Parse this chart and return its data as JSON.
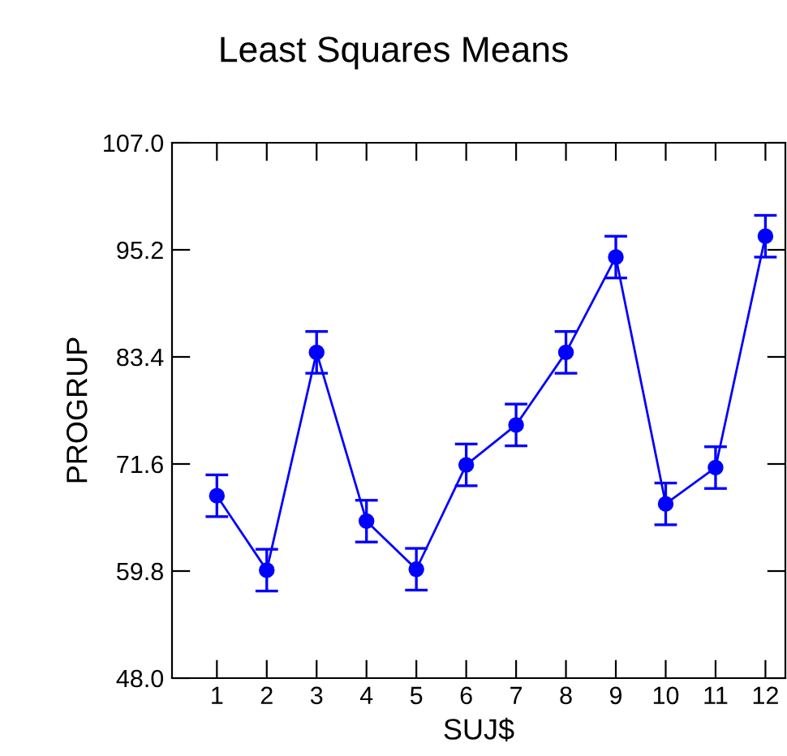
{
  "chart_data": {
    "type": "line",
    "title": "Least Squares Means",
    "xlabel": "SUJ$",
    "ylabel": "PROGRUP",
    "categories": [
      "1",
      "2",
      "3",
      "4",
      "5",
      "6",
      "7",
      "8",
      "9",
      "10",
      "11",
      "12"
    ],
    "series": [
      {
        "color": "#0000ff",
        "values": [
          68.1,
          59.9,
          83.9,
          65.3,
          60.0,
          71.5,
          75.9,
          83.9,
          94.4,
          67.2,
          71.2,
          96.7
        ],
        "errors": [
          2.3,
          2.3,
          2.3,
          2.3,
          2.3,
          2.3,
          2.3,
          2.3,
          2.3,
          2.3,
          2.3,
          2.3
        ]
      }
    ],
    "ylim": [
      48.0,
      107.0
    ],
    "yticks": [
      {
        "value": 48.0,
        "label": "48.0"
      },
      {
        "value": 59.8,
        "label": "59.8"
      },
      {
        "value": 71.6,
        "label": "71.6"
      },
      {
        "value": 83.4,
        "label": "83.4"
      },
      {
        "value": 95.2,
        "label": "95.2"
      },
      {
        "value": 107.0,
        "label": "107.0"
      }
    ],
    "marker": "circle",
    "line_style": "solid",
    "grid": false,
    "legend": false
  }
}
